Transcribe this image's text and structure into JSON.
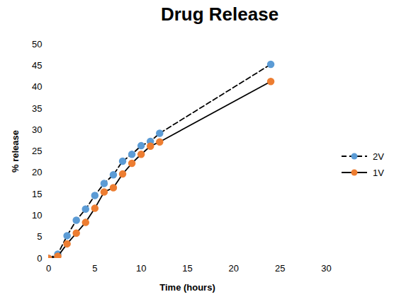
{
  "chart_data": {
    "type": "line",
    "title": "Drug Release",
    "x_label": "Time (hours)",
    "y_label": "% release",
    "x": [
      0,
      1,
      2,
      3,
      4,
      5,
      6,
      7,
      8,
      9,
      10,
      11,
      12,
      24
    ],
    "series": [
      {
        "name": "2V",
        "color": "#5b9bd5",
        "marker": "circle",
        "line_style": "dashed",
        "values": [
          0,
          1,
          5.3,
          8.9,
          11.5,
          14.7,
          17.5,
          19.5,
          22.7,
          24.3,
          26.3,
          27.3,
          29.2,
          45.3
        ]
      },
      {
        "name": "1V",
        "color": "#ed7d31",
        "marker": "circle",
        "line_style": "solid",
        "values": [
          0,
          0.5,
          3.4,
          5.9,
          8.4,
          11.7,
          15.5,
          16.5,
          19.7,
          22.2,
          24.3,
          26.2,
          27.2,
          41.3
        ]
      }
    ],
    "xlim": [
      0,
      30
    ],
    "xticks": [
      0,
      5,
      10,
      15,
      20,
      25,
      30
    ],
    "ylim": [
      0,
      50
    ],
    "yticks": [
      0,
      5,
      10,
      15,
      20,
      25,
      30,
      35,
      40,
      45,
      50
    ],
    "grid": false,
    "legend": "right"
  }
}
